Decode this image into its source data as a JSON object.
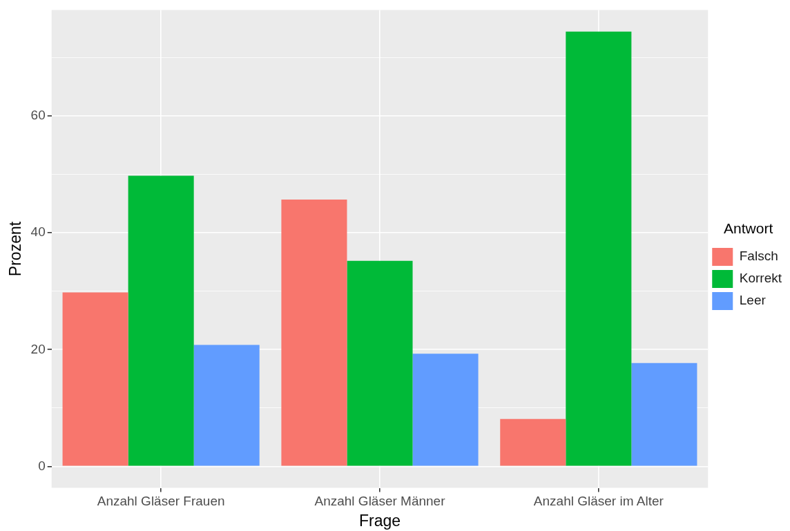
{
  "chart_data": {
    "type": "bar",
    "xlabel": "Frage",
    "ylabel": "Prozent",
    "legend_title": "Antwort",
    "legend": "right",
    "grid": true,
    "categories": [
      "Anzahl Gläser Frauen",
      "Anzahl Gläser Männer",
      "Anzahl Gläser im Alter"
    ],
    "series": [
      {
        "name": "Falsch",
        "color": "#f8766d",
        "values": [
          29.8,
          45.7,
          8.1
        ]
      },
      {
        "name": "Korrekt",
        "color": "#00ba38",
        "values": [
          49.8,
          35.2,
          74.5
        ]
      },
      {
        "name": "Leer",
        "color": "#619cff",
        "values": [
          20.8,
          19.3,
          17.7
        ]
      }
    ],
    "ylim": [
      -3.7,
      78.2
    ],
    "yticks": [
      0,
      {
        "value": 10,
        "label": null
      },
      20,
      {
        "value": 30,
        "label": null
      },
      40,
      {
        "value": 50,
        "label": null
      },
      60,
      {
        "value": 70,
        "label": null
      }
    ]
  }
}
